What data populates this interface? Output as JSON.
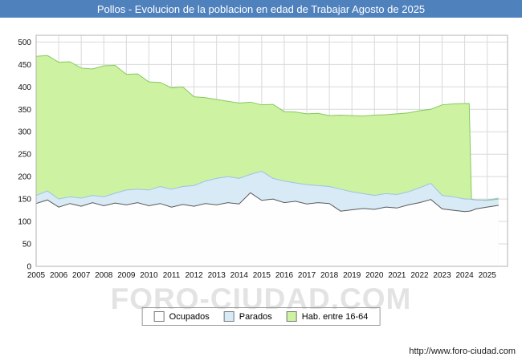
{
  "header": {
    "bg": "#4f81bd",
    "fg": "#ffffff"
  },
  "watermark": "FORO-CIUDAD.COM",
  "footer": {
    "url": "http://www.foro-ciudad.com"
  },
  "colors": {
    "grid": "#d9d9d9",
    "plot_border": "#b3b3b3",
    "tick_text": "#111111",
    "watermark": "#e3e3e3",
    "legend_border": "#999999"
  },
  "chart_data": {
    "type": "area",
    "title": "Pollos - Evolucion de la poblacion en edad de Trabajar Agosto de 2025",
    "xlabel": "",
    "ylabel": "",
    "ylim": [
      0,
      500
    ],
    "ytick_step": 50,
    "grid": true,
    "legend_position": "bottom",
    "x_ticks": [
      2005,
      2006,
      2007,
      2008,
      2009,
      2010,
      2011,
      2012,
      2013,
      2014,
      2015,
      2016,
      2017,
      2018,
      2019,
      2020,
      2021,
      2022,
      2023,
      2024,
      2025
    ],
    "x": [
      2005,
      2005.5,
      2006,
      2006.5,
      2007,
      2007.5,
      2008,
      2008.5,
      2009,
      2009.5,
      2010,
      2010.5,
      2011,
      2011.5,
      2012,
      2012.5,
      2013,
      2013.5,
      2014,
      2014.5,
      2015,
      2015.5,
      2016,
      2016.5,
      2017,
      2017.5,
      2018,
      2018.5,
      2019,
      2019.5,
      2020,
      2020.5,
      2021,
      2021.5,
      2022,
      2022.5,
      2023,
      2023.5,
      2024,
      2024.2,
      2024.3,
      2024.5,
      2025,
      2025.5
    ],
    "series": [
      {
        "name": "Hab. entre 16-64",
        "fill": "#ccf2a2",
        "stroke": "#86ca5e",
        "values": [
          468,
          470,
          455,
          456,
          442,
          440,
          447,
          448,
          428,
          429,
          411,
          410,
          398,
          400,
          378,
          376,
          372,
          368,
          364,
          366,
          360,
          361,
          345,
          344,
          340,
          341,
          336,
          337,
          336,
          335,
          337,
          338,
          340,
          342,
          347,
          350,
          360,
          362,
          363,
          363,
          150,
          148,
          147,
          150
        ]
      },
      {
        "name": "Parados",
        "fill": "#d9eaf7",
        "stroke": "#9cc3e5",
        "values": [
          158,
          168,
          150,
          155,
          152,
          158,
          155,
          163,
          170,
          172,
          170,
          178,
          172,
          178,
          180,
          190,
          196,
          200,
          196,
          205,
          212,
          196,
          190,
          186,
          182,
          180,
          178,
          172,
          166,
          162,
          158,
          162,
          160,
          166,
          175,
          185,
          158,
          155,
          150,
          150,
          149,
          148,
          148,
          152
        ]
      },
      {
        "name": "Ocupados",
        "fill": "#fefefe",
        "stroke": "#595959",
        "values": [
          140,
          148,
          132,
          140,
          134,
          142,
          135,
          141,
          137,
          142,
          135,
          140,
          132,
          138,
          134,
          140,
          137,
          142,
          139,
          164,
          147,
          150,
          142,
          145,
          139,
          142,
          140,
          123,
          126,
          129,
          127,
          132,
          130,
          137,
          142,
          149,
          128,
          125,
          122,
          123,
          124,
          128,
          132,
          136
        ]
      }
    ],
    "legend_order": [
      2,
      1,
      0
    ]
  }
}
